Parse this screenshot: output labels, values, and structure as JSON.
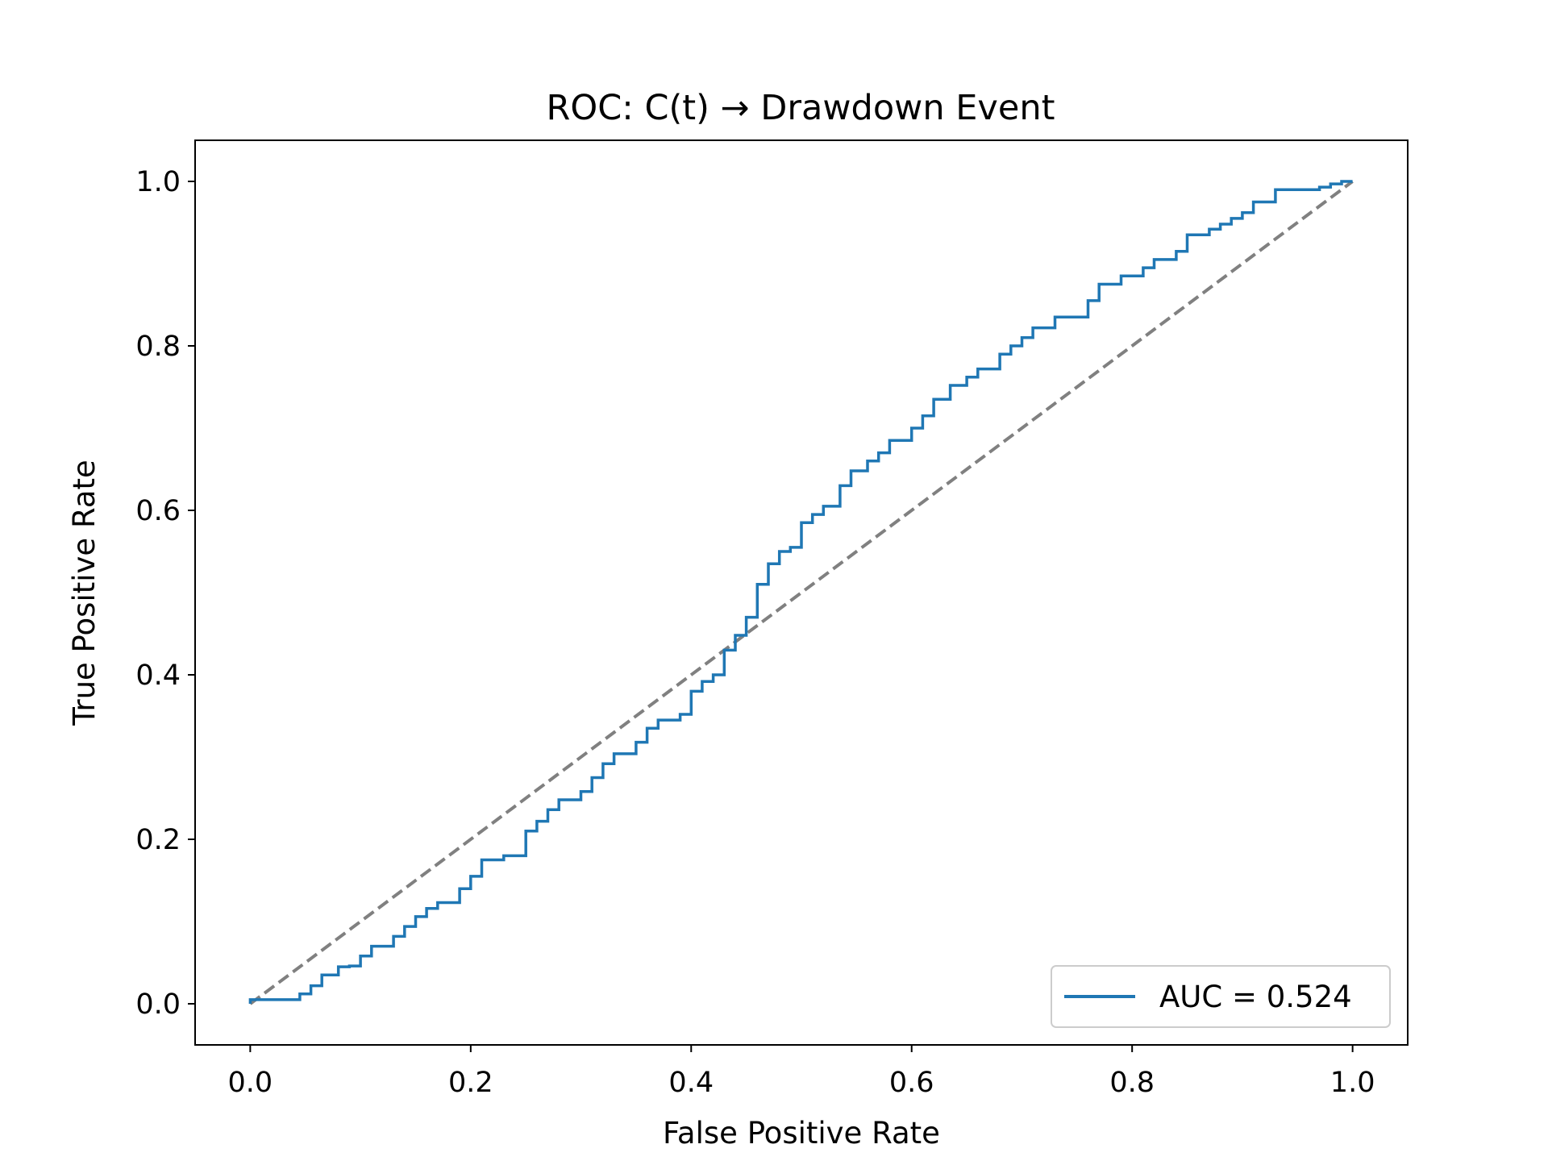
{
  "chart_data": {
    "type": "line",
    "title": "ROC: C(t) → Drawdown Event",
    "xlabel": "False Positive Rate",
    "ylabel": "True Positive Rate",
    "xlim": [
      -0.05,
      1.05
    ],
    "ylim": [
      -0.05,
      1.05
    ],
    "xticks": [
      0.0,
      0.2,
      0.4,
      0.6,
      0.8,
      1.0
    ],
    "yticks": [
      0.0,
      0.2,
      0.4,
      0.6,
      0.8,
      1.0
    ],
    "xtick_labels": [
      "0.0",
      "0.2",
      "0.4",
      "0.6",
      "0.8",
      "1.0"
    ],
    "ytick_labels": [
      "0.0",
      "0.2",
      "0.4",
      "0.6",
      "0.8",
      "1.0"
    ],
    "grid": false,
    "legend_position": "lower-right",
    "series": [
      {
        "name": "AUC = 0.524",
        "style": "solid",
        "color": "#1f77b4",
        "x": [
          0.0,
          0.0,
          0.01,
          0.01,
          0.045,
          0.045,
          0.055,
          0.055,
          0.065,
          0.065,
          0.08,
          0.08,
          0.09,
          0.09,
          0.1,
          0.1,
          0.11,
          0.11,
          0.13,
          0.13,
          0.14,
          0.14,
          0.15,
          0.15,
          0.16,
          0.16,
          0.17,
          0.17,
          0.19,
          0.19,
          0.2,
          0.2,
          0.21,
          0.21,
          0.23,
          0.23,
          0.25,
          0.25,
          0.26,
          0.26,
          0.27,
          0.27,
          0.28,
          0.28,
          0.3,
          0.3,
          0.31,
          0.31,
          0.32,
          0.32,
          0.33,
          0.33,
          0.35,
          0.35,
          0.36,
          0.36,
          0.37,
          0.37,
          0.39,
          0.39,
          0.4,
          0.4,
          0.41,
          0.41,
          0.42,
          0.42,
          0.43,
          0.43,
          0.44,
          0.44,
          0.45,
          0.45,
          0.46,
          0.46,
          0.47,
          0.47,
          0.48,
          0.48,
          0.49,
          0.49,
          0.5,
          0.5,
          0.51,
          0.51,
          0.52,
          0.52,
          0.535,
          0.535,
          0.545,
          0.545,
          0.56,
          0.56,
          0.57,
          0.57,
          0.58,
          0.58,
          0.6,
          0.6,
          0.61,
          0.61,
          0.62,
          0.62,
          0.635,
          0.635,
          0.65,
          0.65,
          0.66,
          0.66,
          0.68,
          0.68,
          0.69,
          0.69,
          0.7,
          0.7,
          0.71,
          0.71,
          0.73,
          0.73,
          0.76,
          0.76,
          0.77,
          0.77,
          0.79,
          0.79,
          0.81,
          0.81,
          0.82,
          0.82,
          0.84,
          0.84,
          0.85,
          0.85,
          0.87,
          0.87,
          0.88,
          0.88,
          0.89,
          0.89,
          0.9,
          0.9,
          0.91,
          0.91,
          0.93,
          0.93,
          0.97,
          0.97,
          0.98,
          0.98,
          0.99,
          0.99,
          1.0
        ],
        "y": [
          0.0,
          0.005,
          0.005,
          0.005,
          0.005,
          0.012,
          0.012,
          0.022,
          0.022,
          0.035,
          0.035,
          0.045,
          0.045,
          0.046,
          0.046,
          0.058,
          0.058,
          0.07,
          0.07,
          0.082,
          0.082,
          0.094,
          0.094,
          0.106,
          0.106,
          0.116,
          0.116,
          0.123,
          0.123,
          0.14,
          0.14,
          0.155,
          0.155,
          0.175,
          0.175,
          0.18,
          0.18,
          0.21,
          0.21,
          0.222,
          0.222,
          0.236,
          0.236,
          0.248,
          0.248,
          0.258,
          0.258,
          0.275,
          0.275,
          0.292,
          0.292,
          0.304,
          0.304,
          0.318,
          0.318,
          0.335,
          0.335,
          0.345,
          0.345,
          0.352,
          0.352,
          0.38,
          0.38,
          0.392,
          0.392,
          0.4,
          0.4,
          0.43,
          0.43,
          0.448,
          0.448,
          0.47,
          0.47,
          0.51,
          0.51,
          0.535,
          0.535,
          0.55,
          0.55,
          0.555,
          0.555,
          0.585,
          0.585,
          0.595,
          0.595,
          0.605,
          0.605,
          0.63,
          0.63,
          0.648,
          0.648,
          0.66,
          0.66,
          0.67,
          0.67,
          0.685,
          0.685,
          0.7,
          0.7,
          0.715,
          0.715,
          0.735,
          0.735,
          0.752,
          0.752,
          0.762,
          0.762,
          0.772,
          0.772,
          0.79,
          0.79,
          0.8,
          0.8,
          0.81,
          0.81,
          0.822,
          0.822,
          0.835,
          0.835,
          0.855,
          0.855,
          0.875,
          0.875,
          0.885,
          0.885,
          0.895,
          0.895,
          0.905,
          0.905,
          0.915,
          0.915,
          0.935,
          0.935,
          0.942,
          0.942,
          0.948,
          0.948,
          0.955,
          0.955,
          0.962,
          0.962,
          0.975,
          0.975,
          0.99,
          0.99,
          0.993,
          0.993,
          0.997,
          0.997,
          1.0,
          1.0
        ]
      },
      {
        "name": "",
        "style": "dashed",
        "color": "#808080",
        "x": [
          0.0,
          1.0
        ],
        "y": [
          0.0,
          1.0
        ]
      }
    ]
  }
}
